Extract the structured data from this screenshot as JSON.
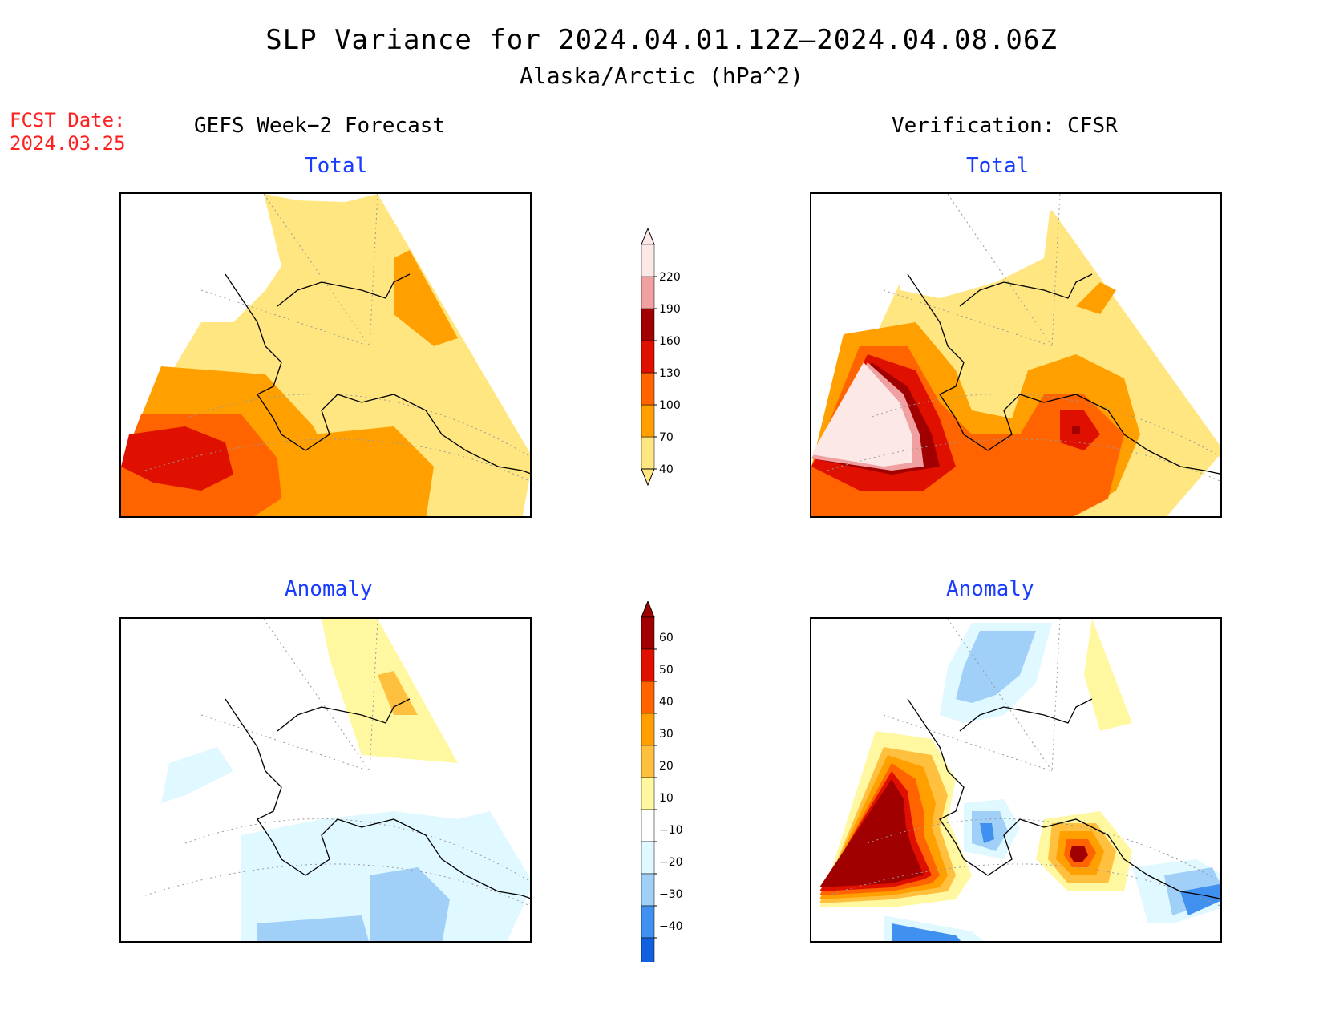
{
  "title": "SLP Variance for 2024.04.01.12Z–2024.04.08.06Z",
  "subtitle": "Alaska/Arctic (hPa^2)",
  "fcst_date_label": "FCST Date:",
  "fcst_date_value": "2024.03.25",
  "left_column_title": "GEFS Week−2 Forecast",
  "right_column_title": "Verification: CFSR",
  "panels": {
    "top_left": "Total",
    "top_right": "Total",
    "bottom_left": "Anomaly",
    "bottom_right": "Anomaly"
  },
  "total_colorbar": {
    "levels": [
      "40",
      "70",
      "100",
      "130",
      "160",
      "190",
      "220"
    ],
    "colors": [
      "#ffe680",
      "#ffa000",
      "#ff6400",
      "#e01000",
      "#a00000",
      "#f0a0a0",
      "#fde8e8"
    ]
  },
  "anomaly_colorbar": {
    "levels": [
      "60",
      "50",
      "40",
      "30",
      "20",
      "10",
      "−10",
      "−20",
      "−30",
      "−40"
    ],
    "colors": [
      "#a00000",
      "#e01000",
      "#ff6400",
      "#ffa000",
      "#ffc040",
      "#fff8a0",
      "#ffffff",
      "#e0f8ff",
      "#a0d0f8",
      "#4090f0",
      "#1060e0"
    ]
  },
  "colors": {
    "panel_title": "#1a3cff",
    "fcst_date": "#ff2020"
  }
}
